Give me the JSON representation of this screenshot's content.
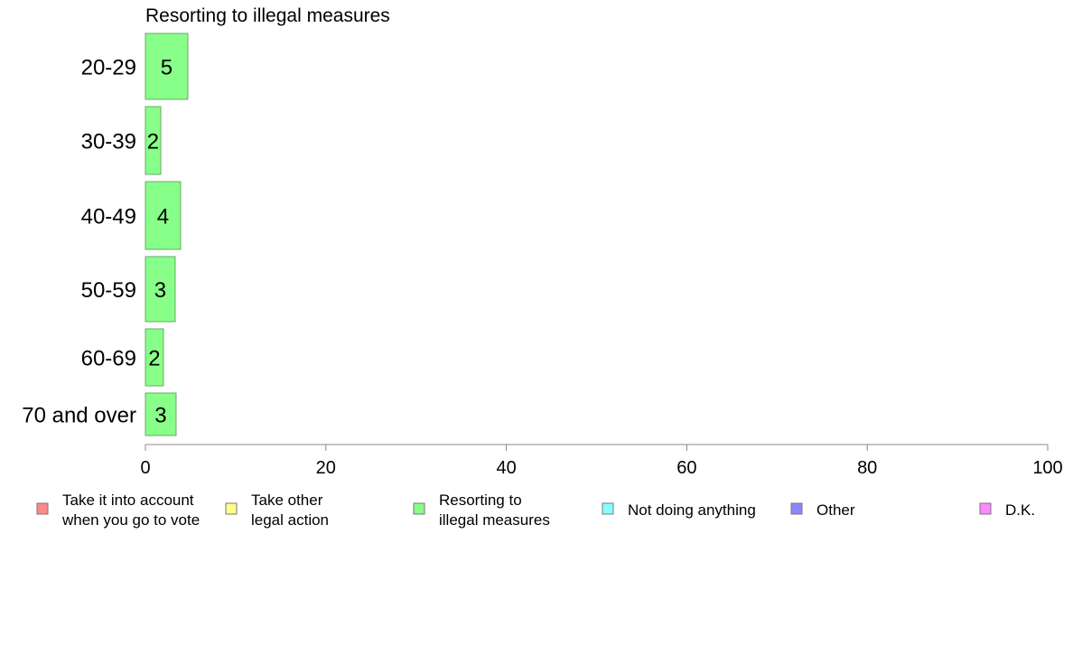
{
  "chart_data": {
    "type": "bar",
    "orientation": "horizontal",
    "title": "Resorting to illegal measures",
    "xlabel": "",
    "ylabel": "",
    "categories": [
      "20-29",
      "30-39",
      "40-49",
      "50-59",
      "60-69",
      "70 and over"
    ],
    "series": [
      {
        "name": "Resorting to illegal measures",
        "values": [
          4.7,
          1.7,
          3.9,
          3.3,
          2.0,
          3.4
        ],
        "labels": [
          "5",
          "2",
          "4",
          "3",
          "2",
          "3"
        ],
        "color": "#88ff88"
      }
    ],
    "xlim": [
      0,
      100
    ],
    "xticks": [
      "0",
      "20",
      "40",
      "60",
      "80",
      "100"
    ],
    "grid": false,
    "legend_position": "bottom",
    "legend": [
      {
        "lines": [
          "Take it into account",
          "when you go to vote"
        ],
        "color": "#ff8888"
      },
      {
        "lines": [
          "Take other",
          "legal action"
        ],
        "color": "#ffff88"
      },
      {
        "lines": [
          "Resorting to",
          "illegal measures"
        ],
        "color": "#88ff88"
      },
      {
        "lines": [
          "Not doing anything"
        ],
        "color": "#88ffff"
      },
      {
        "lines": [
          "Other"
        ],
        "color": "#8888ff"
      },
      {
        "lines": [
          "D.K."
        ],
        "color": "#ff88ff"
      }
    ]
  }
}
